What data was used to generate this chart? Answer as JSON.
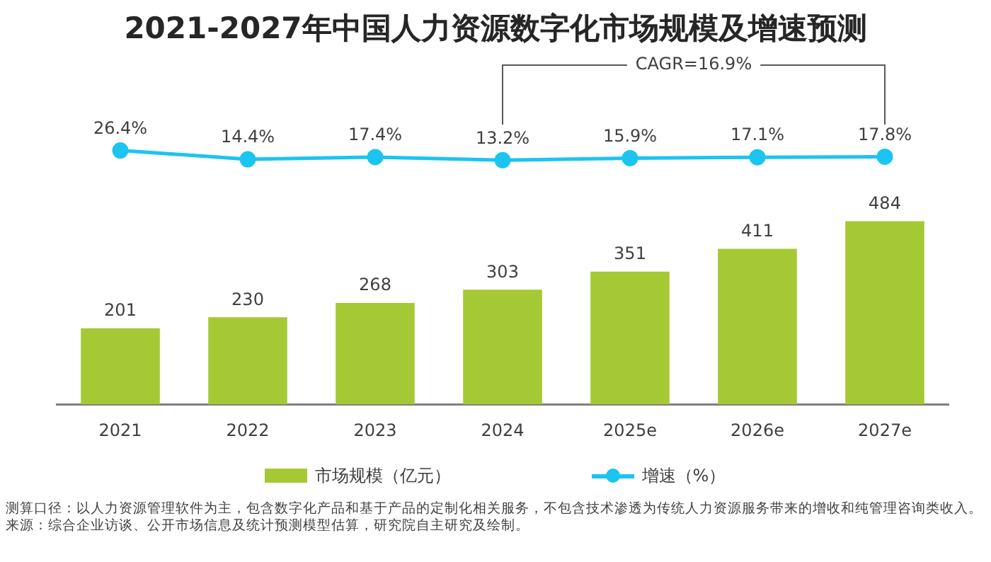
{
  "chart_data": [
    {
      "type": "line",
      "title": "2021-2027年中国人力资源数字化市场规模及增速预测",
      "categories": [
        null,
        null,
        null,
        null,
        null,
        null,
        null
      ],
      "series": [
        {
          "name": "增速（%）",
          "color": "#1cc4f0",
          "values": [
            26.4,
            14.4,
            17.4,
            13.2,
            15.9,
            17.1,
            17.8
          ],
          "value_labels": [
            "26.4%",
            "14.4%",
            "17.4%",
            "13.2%",
            "15.9%",
            "17.1%",
            "17.8%"
          ]
        }
      ],
      "tick_labels": false,
      "grid": false,
      "legend": "bottom",
      "marker": "circle",
      "line_style": "solid",
      "annotations": [
        "CAGR=16.9%"
      ]
    },
    {
      "type": "bar",
      "categories": [
        "2021",
        "2022",
        "2023",
        "2024",
        "2025e",
        "2026e",
        "2027e"
      ],
      "series": [
        {
          "name": "市场规模（亿元）",
          "color": "#a5c934",
          "values": [
            201,
            230,
            268,
            303,
            351,
            411,
            484
          ],
          "value_labels": [
            "201",
            "230",
            "268",
            "303",
            "351",
            "411",
            "484"
          ]
        }
      ],
      "tick_labels": "x",
      "grid": false,
      "legend": "bottom",
      "annotations": [
        "测算口径：以人力资源管理软件为主，包含数字化产品和基于产品的定制化相关服务，不包含技术渗透为传统人力资源服务带来的增收和纯管理咨询类收入。",
        "来源：综合企业访谈、公开市场信息及统计预测模型估算，研究院自主研究及绘制。"
      ]
    }
  ]
}
